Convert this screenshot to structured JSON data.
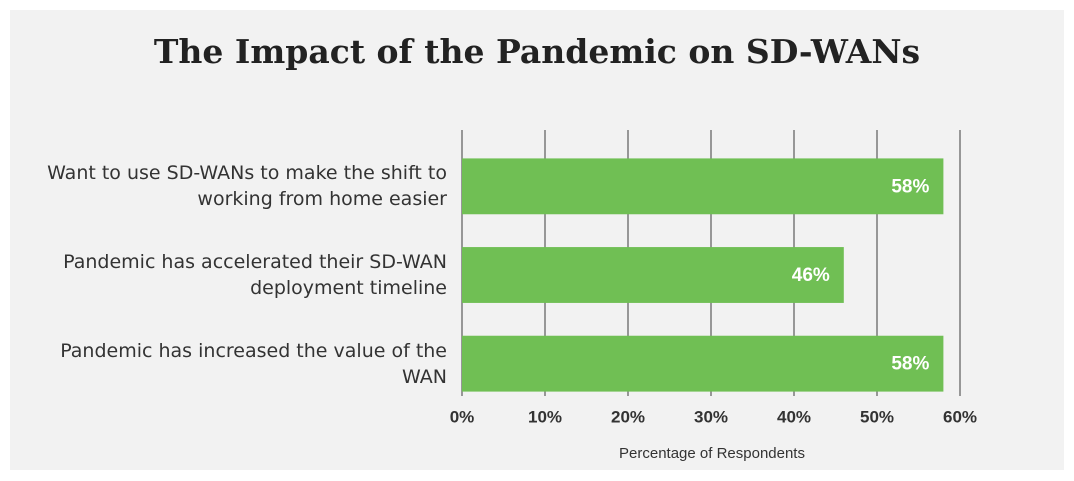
{
  "chart_data": {
    "type": "bar",
    "orientation": "horizontal",
    "title": "The Impact of the Pandemic on SD-WANs",
    "x_label": "Percentage of Respondents",
    "categories": [
      "Want to use SD-WANs to make the shift to working from home easier",
      "Pandemic has accelerated their SD-WAN deployment timeline",
      "Pandemic has increased the value of the WAN"
    ],
    "values": [
      58,
      46,
      58
    ],
    "value_labels": [
      "58%",
      "46%",
      "58%"
    ],
    "color": "#70bf54",
    "xlim": [
      0,
      60
    ],
    "xticks": [
      {
        "value": 0,
        "label": "0%"
      },
      {
        "value": 10,
        "label": "10%"
      },
      {
        "value": 20,
        "label": "20%"
      },
      {
        "value": 30,
        "label": "30%"
      },
      {
        "value": 40,
        "label": "40%"
      },
      {
        "value": 50,
        "label": "50%"
      },
      {
        "value": 60,
        "label": "60%"
      }
    ],
    "grid": true
  }
}
